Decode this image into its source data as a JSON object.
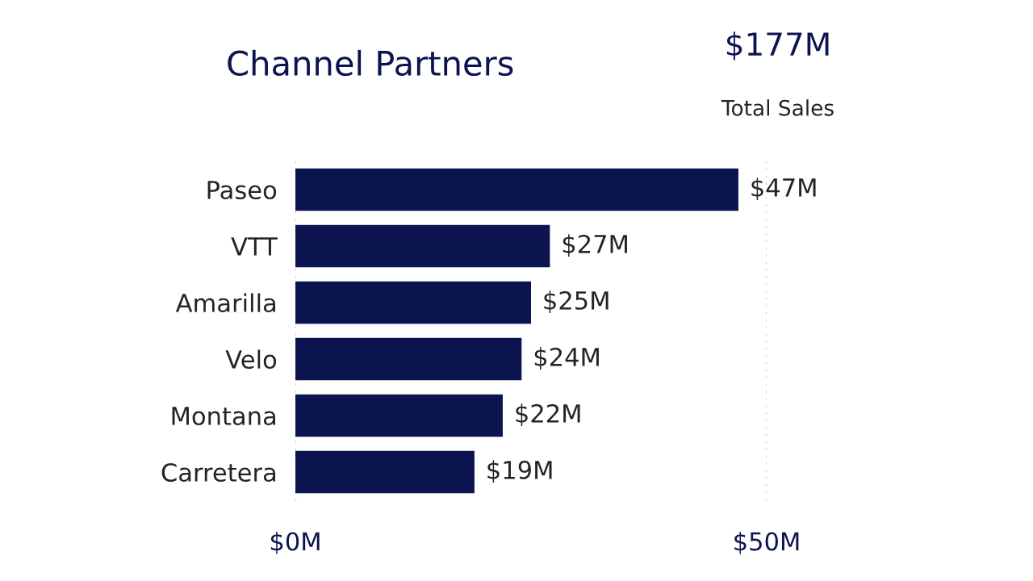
{
  "chart_data": {
    "type": "bar",
    "orientation": "horizontal",
    "title": "Channel Partners",
    "categories": [
      "Paseo",
      "VTT",
      "Amarilla",
      "Velo",
      "Montana",
      "Carretera"
    ],
    "values": [
      47,
      27,
      25,
      24,
      22,
      19
    ],
    "color": "#0c1450",
    "value_labels": [
      "$47M",
      "$27M",
      "$25M",
      "$24M",
      "$22M",
      "$19M"
    ],
    "xlim": [
      0,
      50
    ],
    "xticks": [
      {
        "value": 0,
        "label": "$0M"
      },
      {
        "value": 50,
        "label": "$50M"
      }
    ],
    "grid": "x",
    "annotations": [
      "$177M",
      "Total Sales"
    ]
  }
}
